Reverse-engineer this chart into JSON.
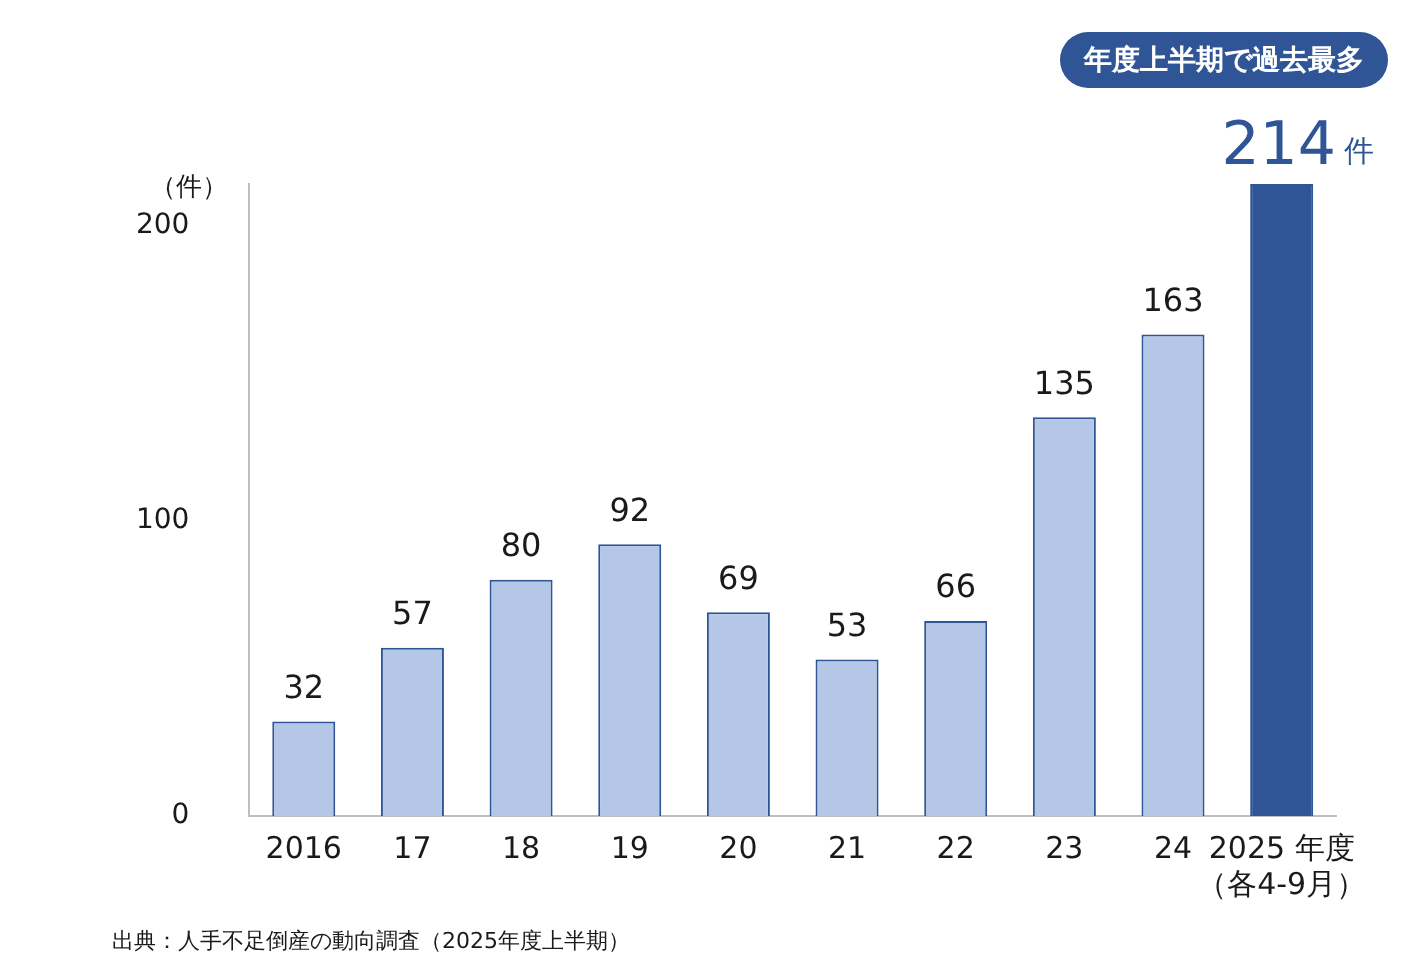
{
  "chart_data": {
    "type": "bar",
    "ylabel": "（件）",
    "categories": [
      "2016",
      "17",
      "18",
      "19",
      "20",
      "21",
      "22",
      "23",
      "24",
      "2025 年度（各4-9月）"
    ],
    "values": [
      32,
      57,
      80,
      92,
      69,
      53,
      66,
      135,
      163,
      214
    ],
    "colors": [
      "#b4c7e7",
      "#b4c7e7",
      "#b4c7e7",
      "#b4c7e7",
      "#b4c7e7",
      "#b4c7e7",
      "#b4c7e7",
      "#b4c7e7",
      "#b4c7e7",
      "#2f5597"
    ],
    "value_labels": [
      "32",
      "57",
      "80",
      "92",
      "69",
      "53",
      "66",
      "135",
      "163",
      "214件"
    ],
    "ylim": [
      0,
      214
    ],
    "yticks": [
      0,
      100,
      200
    ],
    "grid": false,
    "legend": false,
    "annotations": [
      "年度上半期で過去最多",
      "出典：人手不足倒産の動向調査（2025年度上半期）"
    ]
  }
}
